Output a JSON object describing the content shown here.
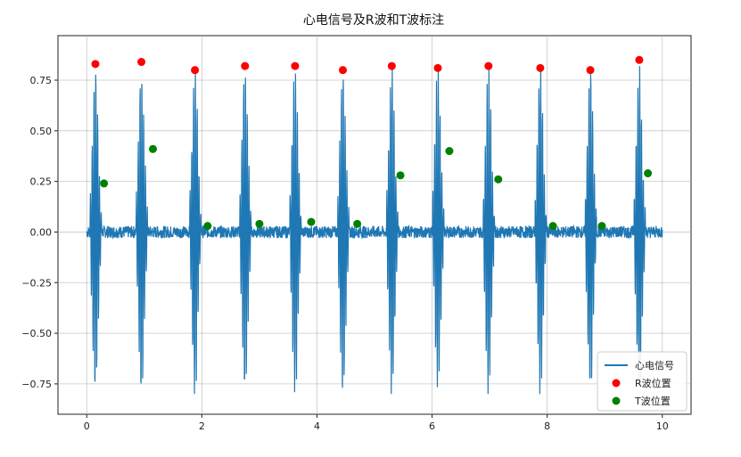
{
  "chart_data": {
    "type": "line",
    "title": "心电信号及R波和T波标注",
    "xlabel": "",
    "ylabel": "",
    "xlim": [
      -0.5,
      10.5
    ],
    "ylim": [
      -0.9,
      0.97
    ],
    "grid": true,
    "legend_position": "bottom-right",
    "x_ticks": [
      0,
      2,
      4,
      6,
      8,
      10
    ],
    "y_ticks": [
      -0.75,
      -0.5,
      -0.25,
      0.0,
      0.25,
      0.5,
      0.75
    ],
    "x_tick_labels": [
      "0",
      "2",
      "4",
      "6",
      "8",
      "10"
    ],
    "y_tick_labels": [
      "−0.75",
      "−0.50",
      "−0.25",
      "0.00",
      "0.25",
      "0.50",
      "0.75"
    ],
    "colors": {
      "signal": "#1f77b4",
      "r_wave": "#ff0000",
      "t_wave": "#008000",
      "grid": "#b0b0b0"
    },
    "series": [
      {
        "name": "心电信号",
        "kind": "line",
        "beats_x": [
          0.15,
          0.95,
          1.88,
          2.75,
          3.62,
          4.45,
          5.3,
          6.1,
          6.98,
          7.88,
          8.75,
          9.6
        ],
        "r_peak": 0.82,
        "s_trough": -0.8,
        "baseline_noise": 0.03,
        "x_range": [
          0,
          10
        ]
      },
      {
        "name": "R波位置",
        "kind": "scatter",
        "x": [
          0.15,
          0.95,
          1.88,
          2.75,
          3.62,
          4.45,
          5.3,
          6.1,
          6.98,
          7.88,
          8.75,
          9.6
        ],
        "y": [
          0.83,
          0.84,
          0.8,
          0.82,
          0.82,
          0.8,
          0.82,
          0.81,
          0.82,
          0.81,
          0.8,
          0.85
        ]
      },
      {
        "name": "T波位置",
        "kind": "scatter",
        "x": [
          0.3,
          1.15,
          2.1,
          3.0,
          3.9,
          4.7,
          5.45,
          6.3,
          7.15,
          8.1,
          8.95,
          9.75
        ],
        "y": [
          0.24,
          0.41,
          0.03,
          0.04,
          0.05,
          0.04,
          0.28,
          0.4,
          0.26,
          0.03,
          0.03,
          0.29
        ]
      }
    ]
  }
}
